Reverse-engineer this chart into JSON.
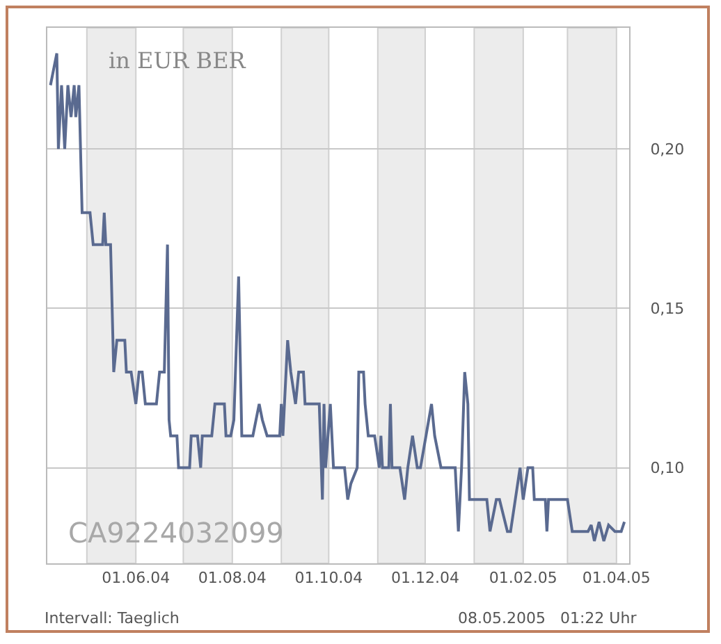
{
  "chart_data": {
    "type": "line",
    "annotations": [
      "in EUR BER",
      "CA9224032099",
      "Intervall: Taeglich",
      "08.05.2005   01:22 Uhr"
    ],
    "x": [
      "2004-04-08",
      "2004-04-12",
      "2004-04-13",
      "2004-04-15",
      "2004-04-17",
      "2004-04-19",
      "2004-04-21",
      "2004-04-23",
      "2004-04-24",
      "2004-04-26",
      "2004-04-28",
      "2004-05-03",
      "2004-05-05",
      "2004-05-11",
      "2004-05-12",
      "2004-05-13",
      "2004-05-16",
      "2004-05-18",
      "2004-05-20",
      "2004-05-25",
      "2004-05-26",
      "2004-05-29",
      "2004-06-01",
      "2004-06-03",
      "2004-06-05",
      "2004-06-07",
      "2004-06-14",
      "2004-06-16",
      "2004-06-19",
      "2004-06-21",
      "2004-06-22",
      "2004-06-23",
      "2004-06-27",
      "2004-06-28",
      "2004-07-05",
      "2004-07-06",
      "2004-07-10",
      "2004-07-12",
      "2004-07-13",
      "2004-07-19",
      "2004-07-21",
      "2004-07-27",
      "2004-07-28",
      "2004-07-31",
      "2004-08-02",
      "2004-08-05",
      "2004-08-07",
      "2004-08-14",
      "2004-08-18",
      "2004-08-20",
      "2004-08-23",
      "2004-08-31",
      "2004-09-01",
      "2004-09-02",
      "2004-09-05",
      "2004-09-07",
      "2004-09-10",
      "2004-09-12",
      "2004-09-15",
      "2004-09-16",
      "2004-09-25",
      "2004-09-27",
      "2004-09-28",
      "2004-09-29",
      "2004-10-02",
      "2004-10-04",
      "2004-10-11",
      "2004-10-13",
      "2004-10-15",
      "2004-10-19",
      "2004-10-20",
      "2004-10-23",
      "2004-10-24",
      "2004-10-26",
      "2004-10-30",
      "2004-11-02",
      "2004-11-03",
      "2004-11-04",
      "2004-11-08",
      "2004-11-09",
      "2004-11-10",
      "2004-11-15",
      "2004-11-18",
      "2004-11-20",
      "2004-11-23",
      "2004-11-26",
      "2004-11-28",
      "2004-12-05",
      "2004-12-07",
      "2004-12-11",
      "2004-12-20",
      "2004-12-22",
      "2004-12-24",
      "2004-12-26",
      "2004-12-28",
      "2004-12-29",
      "2005-01-09",
      "2005-01-11",
      "2005-01-15",
      "2005-01-17",
      "2005-01-22",
      "2005-01-24",
      "2005-01-30",
      "2005-02-01",
      "2005-02-04",
      "2005-02-07",
      "2005-02-08",
      "2005-02-15",
      "2005-02-16",
      "2005-02-17",
      "2005-03-01",
      "2005-03-04",
      "2005-03-14",
      "2005-03-16",
      "2005-03-18",
      "2005-03-21",
      "2005-03-24",
      "2005-03-27",
      "2005-03-31",
      "2005-04-04",
      "2005-04-06"
    ],
    "series": [
      {
        "color": "#5a6a90",
        "values": [
          0.22,
          0.23,
          0.2,
          0.22,
          0.2,
          0.22,
          0.21,
          0.22,
          0.21,
          0.22,
          0.18,
          0.18,
          0.17,
          0.17,
          0.18,
          0.17,
          0.17,
          0.13,
          0.14,
          0.14,
          0.13,
          0.13,
          0.12,
          0.13,
          0.13,
          0.12,
          0.12,
          0.13,
          0.13,
          0.17,
          0.115,
          0.11,
          0.11,
          0.1,
          0.1,
          0.11,
          0.11,
          0.1,
          0.11,
          0.11,
          0.12,
          0.12,
          0.11,
          0.11,
          0.115,
          0.16,
          0.11,
          0.11,
          0.12,
          0.115,
          0.11,
          0.11,
          0.12,
          0.11,
          0.14,
          0.13,
          0.12,
          0.13,
          0.13,
          0.12,
          0.12,
          0.09,
          0.12,
          0.1,
          0.12,
          0.1,
          0.1,
          0.09,
          0.095,
          0.1,
          0.13,
          0.13,
          0.12,
          0.11,
          0.11,
          0.1,
          0.11,
          0.1,
          0.1,
          0.12,
          0.1,
          0.1,
          0.09,
          0.1,
          0.11,
          0.1,
          0.1,
          0.12,
          0.11,
          0.1,
          0.1,
          0.08,
          0.1,
          0.13,
          0.12,
          0.09,
          0.09,
          0.08,
          0.09,
          0.09,
          0.08,
          0.08,
          0.1,
          0.09,
          0.1,
          0.1,
          0.09,
          0.09,
          0.08,
          0.09,
          0.09,
          0.08,
          0.08,
          0.082,
          0.077,
          0.083,
          0.077,
          0.082,
          0.08,
          0.08,
          0.083
        ]
      }
    ],
    "xlim": [
      "2004-04-06",
      "2005-04-09"
    ],
    "xticks": [
      {
        "value": "2004-06-01",
        "label": "01.06.04"
      },
      {
        "value": "2004-08-01",
        "label": "01.08.04"
      },
      {
        "value": "2004-10-01",
        "label": "01.10.04"
      },
      {
        "value": "2004-12-01",
        "label": "01.12.04"
      },
      {
        "value": "2005-02-01",
        "label": "01.02.05"
      },
      {
        "value": "2005-04-01",
        "label": "01.04.05"
      }
    ],
    "ylim": [
      0.07,
      0.238
    ],
    "yticks": [
      {
        "value": 0.1,
        "label": "0,10"
      },
      {
        "value": 0.15,
        "label": "0,15"
      },
      {
        "value": 0.2,
        "label": "0,20"
      }
    ],
    "bands": [
      {
        "axis": "x",
        "from": "2004-05-01",
        "to": "2004-06-01",
        "color": "#ececec"
      },
      {
        "axis": "x",
        "from": "2004-07-01",
        "to": "2004-08-01",
        "color": "#ececec"
      },
      {
        "axis": "x",
        "from": "2004-09-01",
        "to": "2004-10-01",
        "color": "#ececec"
      },
      {
        "axis": "x",
        "from": "2004-11-01",
        "to": "2004-12-01",
        "color": "#ececec"
      },
      {
        "axis": "x",
        "from": "2005-01-01",
        "to": "2005-02-01",
        "color": "#ececec"
      },
      {
        "axis": "x",
        "from": "2005-03-01",
        "to": "2005-04-01",
        "color": "#ececec"
      }
    ],
    "grid": "y",
    "marker": "none",
    "line_style": "solid"
  }
}
